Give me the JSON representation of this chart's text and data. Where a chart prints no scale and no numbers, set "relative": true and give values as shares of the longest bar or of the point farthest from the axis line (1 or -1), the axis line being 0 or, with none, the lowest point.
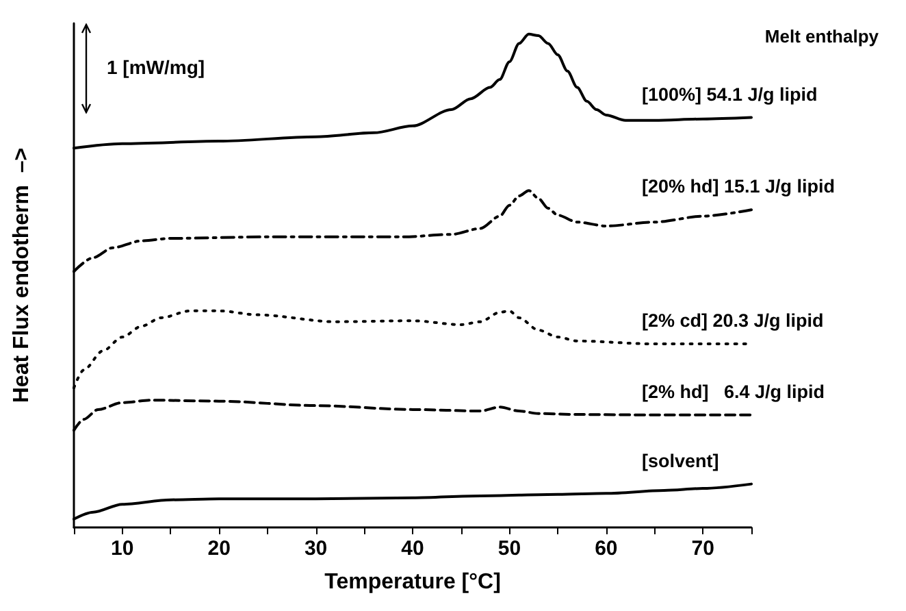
{
  "chart_data": {
    "type": "line",
    "relative": true,
    "xlabel": "Temperature [°C]",
    "ylabel": "Heat Flux endotherm  –>",
    "legend_title": "Melt enthalpy",
    "annotations": [
      "1 [mW/mg]"
    ],
    "xlim": [
      5,
      75
    ],
    "xticks": [
      {
        "value": 5,
        "label": null
      },
      10,
      {
        "value": 15,
        "label": null
      },
      20,
      {
        "value": 25,
        "label": null
      },
      30,
      {
        "value": 35,
        "label": null
      },
      40,
      {
        "value": 45,
        "label": null
      },
      50,
      {
        "value": 55,
        "label": null
      },
      60,
      {
        "value": 65,
        "label": null
      },
      70,
      {
        "value": 75,
        "label": null
      }
    ],
    "grid": false,
    "legend": false,
    "marker": "none",
    "series": [
      {
        "name": "[100%] 54.1 J/g lipid",
        "color": "#000000",
        "line_style": "solid",
        "x": [
          5,
          10,
          20,
          30,
          36,
          40,
          44,
          46,
          48,
          49,
          50,
          51,
          52,
          53,
          54,
          55,
          56,
          57,
          58,
          59,
          60,
          62,
          65,
          70,
          75
        ],
        "values": [
          0.769,
          0.778,
          0.783,
          0.792,
          0.8,
          0.814,
          0.847,
          0.869,
          0.892,
          0.908,
          0.944,
          0.981,
          1.0,
          0.997,
          0.981,
          0.958,
          0.925,
          0.892,
          0.864,
          0.847,
          0.836,
          0.825,
          0.825,
          0.828,
          0.831
        ]
      },
      {
        "name": "[20% hd] 15.1 J/g lipid",
        "color": "#000000",
        "line_style": "dashdot",
        "x": [
          5,
          7,
          9,
          12,
          15,
          25,
          39,
          44,
          47,
          49,
          50,
          51,
          52,
          53,
          54,
          55,
          57,
          60,
          65,
          70,
          75
        ],
        "values": [
          0.519,
          0.547,
          0.567,
          0.581,
          0.586,
          0.589,
          0.589,
          0.594,
          0.606,
          0.631,
          0.653,
          0.672,
          0.683,
          0.667,
          0.647,
          0.633,
          0.619,
          0.611,
          0.619,
          0.631,
          0.644
        ]
      },
      {
        "name": "[2% cd] 20.3 J/g lipid",
        "color": "#000000",
        "line_style": "dotted",
        "x": [
          5,
          6,
          8,
          10,
          12,
          14,
          17,
          20,
          24,
          32,
          40,
          45,
          47,
          49,
          50,
          51,
          53,
          55,
          57,
          65,
          75
        ],
        "values": [
          0.283,
          0.319,
          0.358,
          0.386,
          0.408,
          0.425,
          0.439,
          0.439,
          0.431,
          0.417,
          0.419,
          0.411,
          0.417,
          0.436,
          0.439,
          0.425,
          0.4,
          0.386,
          0.378,
          0.372,
          0.372
        ]
      },
      {
        "name": "[2% hd]   6.4 J/g lipid",
        "color": "#000000",
        "line_style": "dashed",
        "x": [
          5,
          6,
          7.5,
          10,
          13,
          20,
          30,
          40,
          47,
          49,
          51,
          53,
          57,
          65,
          75
        ],
        "values": [
          0.197,
          0.219,
          0.239,
          0.253,
          0.258,
          0.256,
          0.247,
          0.239,
          0.236,
          0.244,
          0.236,
          0.231,
          0.229,
          0.228,
          0.228
        ]
      },
      {
        "name": "[solvent]",
        "color": "#000000",
        "line_style": "solid",
        "x": [
          5,
          7,
          10,
          15,
          20,
          30,
          40,
          47,
          55,
          60,
          66,
          70,
          75
        ],
        "values": [
          0.017,
          0.031,
          0.047,
          0.056,
          0.058,
          0.058,
          0.06,
          0.064,
          0.067,
          0.069,
          0.075,
          0.079,
          0.088
        ]
      }
    ]
  }
}
